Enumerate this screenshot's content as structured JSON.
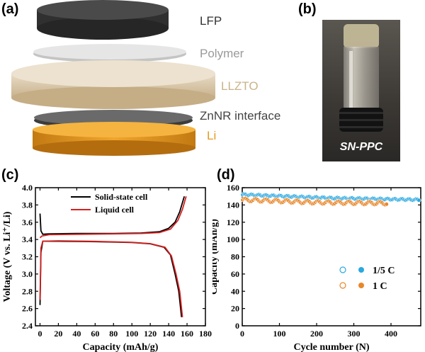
{
  "panels": {
    "a": {
      "label": "(a)",
      "layers": [
        "LFP",
        "Polymer",
        "LLZTO",
        "ZnNR interface",
        "Li"
      ],
      "colors": {
        "LFP": "#3a3a3a",
        "Polymer": "#b0b0b0",
        "LLZTO": "#c8b18c",
        "ZnNR": "#565656",
        "Li": "#e59a1d"
      }
    },
    "b": {
      "label": "(b)",
      "photo_caption": "SN-PPC"
    },
    "c": {
      "label": "(c)"
    },
    "d": {
      "label": "(d)"
    }
  },
  "chart_data": [
    {
      "type": "line",
      "xlabel": "Capacity (mAh/g)",
      "ylabel": "Voltage (V vs. Li⁺/Li)",
      "xlim": [
        -5,
        180
      ],
      "ylim": [
        2.4,
        4.0
      ],
      "xticks": [
        0,
        20,
        40,
        60,
        80,
        100,
        120,
        140,
        160,
        180
      ],
      "yticks": [
        2.4,
        2.6,
        2.8,
        3.0,
        3.2,
        3.4,
        3.6,
        3.8,
        4.0
      ],
      "xtick_labels": [
        "0",
        "20",
        "40",
        "60",
        "80",
        "100",
        "120",
        "140",
        "160",
        "180"
      ],
      "ytick_labels": [
        "2.4",
        "2.6",
        "2.8",
        "3.0",
        "3.2",
        "3.4",
        "3.6",
        "3.8",
        "4.0"
      ],
      "legend_position": "top-right",
      "series": [
        {
          "name": "Solid-state cell",
          "color": "#000000",
          "charge": [
            [
              0,
              3.7
            ],
            [
              1,
              3.5
            ],
            [
              3,
              3.46
            ],
            [
              10,
              3.465
            ],
            [
              40,
              3.47
            ],
            [
              80,
              3.47
            ],
            [
              110,
              3.475
            ],
            [
              130,
              3.49
            ],
            [
              140,
              3.53
            ],
            [
              147,
              3.6
            ],
            [
              152,
              3.72
            ],
            [
              157,
              3.9
            ]
          ],
          "discharge": [
            [
              0,
              2.64
            ],
            [
              1,
              3.25
            ],
            [
              3,
              3.38
            ],
            [
              20,
              3.38
            ],
            [
              60,
              3.375
            ],
            [
              100,
              3.365
            ],
            [
              120,
              3.35
            ],
            [
              135,
              3.31
            ],
            [
              142,
              3.22
            ],
            [
              147,
              3.0
            ],
            [
              151,
              2.8
            ],
            [
              154,
              2.5
            ]
          ]
        },
        {
          "name": "Liquid cell",
          "color": "#d62020",
          "charge": [
            [
              0,
              3.42
            ],
            [
              2,
              3.44
            ],
            [
              10,
              3.455
            ],
            [
              40,
              3.46
            ],
            [
              80,
              3.465
            ],
            [
              110,
              3.47
            ],
            [
              130,
              3.48
            ],
            [
              142,
              3.52
            ],
            [
              150,
              3.62
            ],
            [
              155,
              3.75
            ],
            [
              159,
              3.9
            ]
          ],
          "discharge": [
            [
              0,
              2.7
            ],
            [
              1,
              3.3
            ],
            [
              3,
              3.38
            ],
            [
              20,
              3.385
            ],
            [
              60,
              3.378
            ],
            [
              100,
              3.367
            ],
            [
              120,
              3.352
            ],
            [
              136,
              3.31
            ],
            [
              143,
              3.21
            ],
            [
              148,
              3.0
            ],
            [
              152,
              2.8
            ],
            [
              155,
              2.5
            ]
          ]
        }
      ]
    },
    {
      "type": "scatter",
      "xlabel": "Cycle number (N)",
      "ylabel": "Capacity (mAh/g)",
      "xlim": [
        0,
        480
      ],
      "ylim": [
        0,
        160
      ],
      "xticks": [
        0,
        100,
        200,
        300,
        400
      ],
      "yticks": [
        0,
        20,
        40,
        60,
        80,
        100,
        120,
        140,
        160
      ],
      "xtick_labels": [
        "0",
        "100",
        "200",
        "300",
        "400"
      ],
      "ytick_labels": [
        "0",
        "20",
        "40",
        "60",
        "80",
        "100",
        "120",
        "140",
        "160"
      ],
      "legend_position": "center-right",
      "series": [
        {
          "name": "1/5 C",
          "color": "#2aa8e0",
          "start_x": 1,
          "end_x": 475,
          "values_start": 152,
          "values_mid": 148,
          "values_end": 146
        },
        {
          "name": "1 C",
          "color": "#e8872a",
          "start_x": 1,
          "end_x": 388,
          "values_start": 146,
          "values_mid": 143,
          "values_end": 142
        }
      ]
    }
  ]
}
